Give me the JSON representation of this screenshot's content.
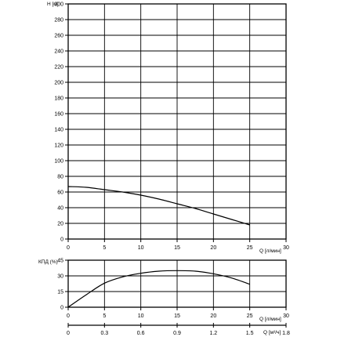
{
  "chart_data": [
    {
      "type": "line",
      "ylabel": "H [м]",
      "xlabel": "Q [л/мин]",
      "xlim": [
        0,
        30
      ],
      "ylim": [
        0,
        300
      ],
      "x_ticks": [
        0,
        5,
        10,
        15,
        20,
        25,
        30
      ],
      "y_ticks": [
        0,
        20,
        40,
        60,
        80,
        100,
        120,
        140,
        160,
        180,
        200,
        220,
        240,
        260,
        280,
        300
      ],
      "grid": true,
      "series": [
        {
          "x": [
            0,
            2.5,
            5,
            7.5,
            10,
            12.5,
            15,
            17.5,
            20,
            22.5,
            25
          ],
          "y": [
            67,
            66,
            63,
            60,
            56,
            51,
            45,
            39,
            32,
            25,
            18
          ]
        }
      ]
    },
    {
      "type": "line",
      "ylabel": "КПД (%)",
      "xlabel": "Q [л/мин]",
      "xlim": [
        0,
        30
      ],
      "ylim": [
        0,
        45
      ],
      "x_ticks": [
        0,
        5,
        10,
        15,
        20,
        25,
        30
      ],
      "y_ticks": [
        0,
        15,
        30,
        45
      ],
      "grid": true,
      "series": [
        {
          "x": [
            0,
            2.5,
            5,
            7.5,
            10,
            12.5,
            15,
            17.5,
            20,
            22.5,
            25
          ],
          "y": [
            0,
            12,
            23,
            29,
            32.5,
            34.5,
            35,
            34.5,
            32,
            28,
            22
          ]
        }
      ]
    },
    {
      "type": "axis",
      "xlabel": "Q [м³/ч]",
      "x_ticks": [
        "0",
        "0.3",
        "0.6",
        "0.9",
        "1.2",
        "1.5",
        "1.8"
      ]
    }
  ],
  "labels": {
    "head_axis": "H [м]",
    "flow_axis": "Q [л/мин]",
    "eff_axis": "КПД (%)",
    "flow_axis_m3": "Q [м³/ч]"
  }
}
